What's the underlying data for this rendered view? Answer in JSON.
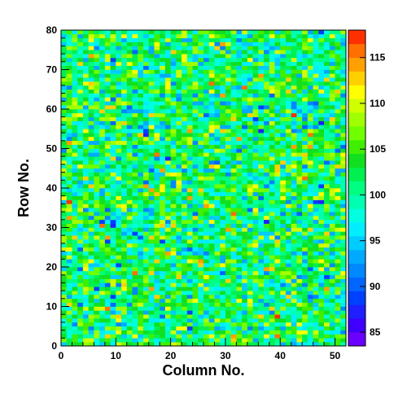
{
  "chart_data": {
    "type": "heatmap",
    "title": "",
    "xlabel": "Column No.",
    "ylabel": "Row No.",
    "xlim": [
      0,
      52
    ],
    "ylim": [
      0,
      80
    ],
    "x_ticks": [
      0,
      10,
      20,
      30,
      40,
      50
    ],
    "y_ticks": [
      0,
      10,
      20,
      30,
      40,
      50,
      60,
      70,
      80
    ],
    "n_columns": 52,
    "n_rows": 80,
    "zlim": [
      83.5,
      118
    ],
    "colorbar_ticks": [
      85,
      90,
      95,
      100,
      105,
      110,
      115
    ],
    "colorbar_steps": [
      83.5,
      85,
      86.5,
      88,
      89.5,
      91,
      92.5,
      94,
      95.5,
      97,
      98.5,
      100,
      101.5,
      103,
      104.5,
      106,
      107.5,
      109,
      110.5,
      112,
      113.5,
      115,
      116.5,
      118
    ],
    "palette": [
      "#6a00ff",
      "#3f00ff",
      "#1f1fff",
      "#0040ff",
      "#0066ff",
      "#0088ff",
      "#00aaff",
      "#00ccff",
      "#00eeff",
      "#00ffe0",
      "#00ffb0",
      "#00ff80",
      "#00f050",
      "#10e020",
      "#40ef00",
      "#70ff00",
      "#a0ff00",
      "#d0ff00",
      "#ffff00",
      "#ffd000",
      "#ffa000",
      "#ff7000",
      "#ff3000",
      "#ff0000"
    ],
    "value_distribution": {
      "mean": 101,
      "spread": 5
    },
    "note_values": "per-cell values estimated: mostly 97-106 (green), scattered 90-115"
  }
}
